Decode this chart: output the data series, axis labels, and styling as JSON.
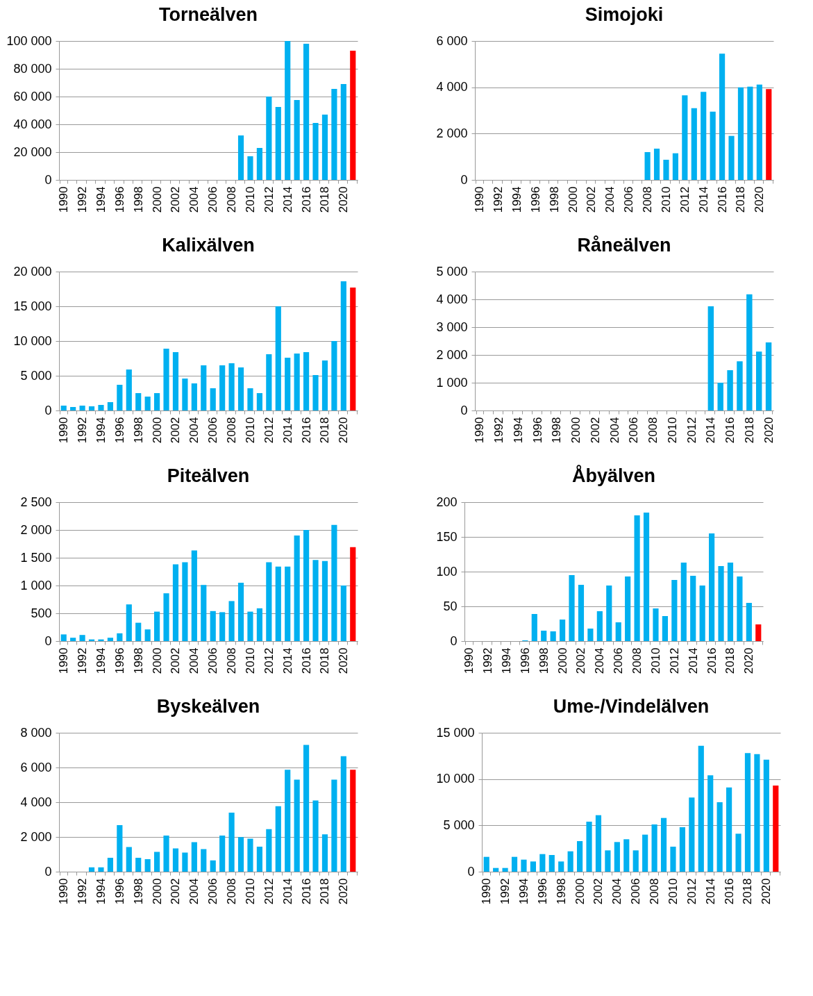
{
  "chart_data": [
    {
      "type": "bar",
      "title": "Torneälven",
      "categories": [
        "1990",
        null,
        "1992",
        null,
        "1994",
        null,
        "1996",
        null,
        "1998",
        null,
        "2000",
        null,
        "2002",
        null,
        "2004",
        null,
        "2006",
        null,
        "2008",
        null,
        "2010",
        null,
        "2012",
        null,
        "2014",
        null,
        "2016",
        null,
        "2018",
        null,
        "2020",
        null
      ],
      "values": [
        null,
        null,
        null,
        null,
        null,
        null,
        null,
        null,
        null,
        null,
        null,
        null,
        null,
        null,
        null,
        null,
        null,
        null,
        null,
        32000,
        17000,
        23000,
        60000,
        52500,
        100000,
        57500,
        98000,
        41000,
        47000,
        65500,
        69000,
        93000
      ],
      "colors": [
        null,
        null,
        null,
        null,
        null,
        null,
        null,
        null,
        null,
        null,
        null,
        null,
        null,
        null,
        null,
        null,
        null,
        null,
        null,
        "#00b0f0",
        "#00b0f0",
        "#00b0f0",
        "#00b0f0",
        "#00b0f0",
        "#00b0f0",
        "#00b0f0",
        "#00b0f0",
        "#00b0f0",
        "#00b0f0",
        "#00b0f0",
        "#00b0f0",
        "#ff0000"
      ],
      "ylim": [
        0,
        100000
      ],
      "yticks": [
        0,
        {
          "value": 20000,
          "label": "20 000"
        },
        {
          "value": 40000,
          "label": "40 000"
        },
        {
          "value": 60000,
          "label": "60 000"
        },
        {
          "value": 80000,
          "label": "80 000"
        },
        {
          "value": 100000,
          "label": "100 000"
        }
      ],
      "grid": "y"
    },
    {
      "type": "bar",
      "title": "Simojoki",
      "categories": [
        "1990",
        null,
        "1992",
        null,
        "1994",
        null,
        "1996",
        null,
        "1998",
        null,
        "2000",
        null,
        "2002",
        null,
        "2004",
        null,
        "2006",
        null,
        "2008",
        null,
        "2010",
        null,
        "2012",
        null,
        "2014",
        null,
        "2016",
        null,
        "2018",
        null,
        "2020",
        null
      ],
      "values": [
        null,
        null,
        null,
        null,
        null,
        null,
        null,
        null,
        null,
        null,
        null,
        null,
        null,
        null,
        null,
        null,
        null,
        null,
        1200,
        1350,
        870,
        1150,
        3650,
        3100,
        3800,
        2950,
        5450,
        1900,
        4000,
        4030,
        4120,
        3920
      ],
      "colors": [
        null,
        null,
        null,
        null,
        null,
        null,
        null,
        null,
        null,
        null,
        null,
        null,
        null,
        null,
        null,
        null,
        null,
        null,
        "#00b0f0",
        "#00b0f0",
        "#00b0f0",
        "#00b0f0",
        "#00b0f0",
        "#00b0f0",
        "#00b0f0",
        "#00b0f0",
        "#00b0f0",
        "#00b0f0",
        "#00b0f0",
        "#00b0f0",
        "#00b0f0",
        "#ff0000"
      ],
      "ylim": [
        0,
        6000
      ],
      "yticks": [
        0,
        {
          "value": 2000,
          "label": "2 000"
        },
        {
          "value": 4000,
          "label": "4 000"
        },
        {
          "value": 6000,
          "label": "6 000"
        }
      ],
      "grid": "y"
    },
    {
      "type": "bar",
      "title": "Kalixälven",
      "categories": [
        "1990",
        null,
        "1992",
        null,
        "1994",
        null,
        "1996",
        null,
        "1998",
        null,
        "2000",
        null,
        "2002",
        null,
        "2004",
        null,
        "2006",
        null,
        "2008",
        null,
        "2010",
        null,
        "2012",
        null,
        "2014",
        null,
        "2016",
        null,
        "2018",
        null,
        "2020",
        null
      ],
      "values": [
        700,
        500,
        700,
        600,
        800,
        1200,
        3700,
        5900,
        2500,
        2000,
        2500,
        8900,
        8400,
        4600,
        3900,
        6500,
        3200,
        6500,
        6800,
        6200,
        3200,
        2500,
        8100,
        15000,
        7600,
        8200,
        8400,
        5100,
        7200,
        10000,
        18600,
        17700
      ],
      "colors": [
        "#00b0f0",
        "#00b0f0",
        "#00b0f0",
        "#00b0f0",
        "#00b0f0",
        "#00b0f0",
        "#00b0f0",
        "#00b0f0",
        "#00b0f0",
        "#00b0f0",
        "#00b0f0",
        "#00b0f0",
        "#00b0f0",
        "#00b0f0",
        "#00b0f0",
        "#00b0f0",
        "#00b0f0",
        "#00b0f0",
        "#00b0f0",
        "#00b0f0",
        "#00b0f0",
        "#00b0f0",
        "#00b0f0",
        "#00b0f0",
        "#00b0f0",
        "#00b0f0",
        "#00b0f0",
        "#00b0f0",
        "#00b0f0",
        "#00b0f0",
        "#00b0f0",
        "#ff0000"
      ],
      "ylim": [
        0,
        20000
      ],
      "yticks": [
        0,
        {
          "value": 5000,
          "label": "5 000"
        },
        {
          "value": 10000,
          "label": "10 000"
        },
        {
          "value": 15000,
          "label": "15 000"
        },
        {
          "value": 20000,
          "label": "20 000"
        }
      ],
      "grid": "y"
    },
    {
      "type": "bar",
      "title": "Råneälven",
      "categories": [
        "1990",
        null,
        "1992",
        null,
        "1994",
        null,
        "1996",
        null,
        "1998",
        null,
        "2000",
        null,
        "2002",
        null,
        "2004",
        null,
        "2006",
        null,
        "2008",
        null,
        "2010",
        null,
        "2012",
        null,
        "2014",
        null,
        "2016",
        null,
        "2018",
        null,
        "2020"
      ],
      "values": [
        null,
        null,
        null,
        null,
        null,
        null,
        null,
        null,
        null,
        null,
        null,
        null,
        null,
        null,
        null,
        null,
        null,
        null,
        null,
        null,
        null,
        null,
        null,
        null,
        3750,
        1000,
        1450,
        1770,
        4180,
        2120,
        2450
      ],
      "colors": [
        null,
        null,
        null,
        null,
        null,
        null,
        null,
        null,
        null,
        null,
        null,
        null,
        null,
        null,
        null,
        null,
        null,
        null,
        null,
        null,
        null,
        null,
        null,
        null,
        "#00b0f0",
        "#00b0f0",
        "#00b0f0",
        "#00b0f0",
        "#00b0f0",
        "#00b0f0",
        "#00b0f0"
      ],
      "ylim": [
        0,
        5000
      ],
      "yticks": [
        0,
        {
          "value": 1000,
          "label": "1 000"
        },
        {
          "value": 2000,
          "label": "2 000"
        },
        {
          "value": 3000,
          "label": "3 000"
        },
        {
          "value": 4000,
          "label": "4 000"
        },
        {
          "value": 5000,
          "label": "5 000"
        }
      ],
      "grid": "y"
    },
    {
      "type": "bar",
      "title": "Piteälven",
      "categories": [
        "1990",
        null,
        "1992",
        null,
        "1994",
        null,
        "1996",
        null,
        "1998",
        null,
        "2000",
        null,
        "2002",
        null,
        "2004",
        null,
        "2006",
        null,
        "2008",
        null,
        "2010",
        null,
        "2012",
        null,
        "2014",
        null,
        "2016",
        null,
        "2018",
        null,
        "2020",
        null
      ],
      "values": [
        120,
        60,
        110,
        30,
        30,
        60,
        140,
        660,
        330,
        210,
        530,
        860,
        1380,
        1420,
        1630,
        1010,
        540,
        520,
        720,
        1050,
        530,
        590,
        1420,
        1340,
        1340,
        1900,
        2000,
        1460,
        1440,
        2090,
        1000,
        1690
      ],
      "colors": [
        "#00b0f0",
        "#00b0f0",
        "#00b0f0",
        "#00b0f0",
        "#00b0f0",
        "#00b0f0",
        "#00b0f0",
        "#00b0f0",
        "#00b0f0",
        "#00b0f0",
        "#00b0f0",
        "#00b0f0",
        "#00b0f0",
        "#00b0f0",
        "#00b0f0",
        "#00b0f0",
        "#00b0f0",
        "#00b0f0",
        "#00b0f0",
        "#00b0f0",
        "#00b0f0",
        "#00b0f0",
        "#00b0f0",
        "#00b0f0",
        "#00b0f0",
        "#00b0f0",
        "#00b0f0",
        "#00b0f0",
        "#00b0f0",
        "#00b0f0",
        "#00b0f0",
        "#ff0000"
      ],
      "ylim": [
        0,
        2500
      ],
      "yticks": [
        0,
        500,
        {
          "value": 1000,
          "label": "1 000"
        },
        {
          "value": 1500,
          "label": "1 500"
        },
        {
          "value": 2000,
          "label": "2 000"
        },
        {
          "value": 2500,
          "label": "2 500"
        }
      ],
      "grid": "y"
    },
    {
      "type": "bar",
      "title": "Åbyälven",
      "categories": [
        "1990",
        null,
        "1992",
        null,
        "1994",
        null,
        "1996",
        null,
        "1998",
        null,
        "2000",
        null,
        "2002",
        null,
        "2004",
        null,
        "2006",
        null,
        "2008",
        null,
        "2010",
        null,
        "2012",
        null,
        "2014",
        null,
        "2016",
        null,
        "2018",
        null,
        "2020",
        null
      ],
      "values": [
        null,
        null,
        null,
        null,
        null,
        null,
        1,
        39,
        15,
        14,
        31,
        95,
        81,
        18,
        43,
        80,
        27,
        93,
        181,
        185,
        47,
        36,
        88,
        113,
        94,
        80,
        155,
        108,
        113,
        93,
        55,
        24
      ],
      "colors": [
        null,
        null,
        null,
        null,
        null,
        null,
        "#00b0f0",
        "#00b0f0",
        "#00b0f0",
        "#00b0f0",
        "#00b0f0",
        "#00b0f0",
        "#00b0f0",
        "#00b0f0",
        "#00b0f0",
        "#00b0f0",
        "#00b0f0",
        "#00b0f0",
        "#00b0f0",
        "#00b0f0",
        "#00b0f0",
        "#00b0f0",
        "#00b0f0",
        "#00b0f0",
        "#00b0f0",
        "#00b0f0",
        "#00b0f0",
        "#00b0f0",
        "#00b0f0",
        "#00b0f0",
        "#00b0f0",
        "#ff0000"
      ],
      "ylim": [
        0,
        200
      ],
      "yticks": [
        0,
        50,
        100,
        150,
        200
      ],
      "grid": "y"
    },
    {
      "type": "bar",
      "title": "Byskeälven",
      "categories": [
        "1990",
        null,
        "1992",
        null,
        "1994",
        null,
        "1996",
        null,
        "1998",
        null,
        "2000",
        null,
        "2002",
        null,
        "2004",
        null,
        "2006",
        null,
        "2008",
        null,
        "2010",
        null,
        "2012",
        null,
        "2014",
        null,
        "2016",
        null,
        "2018",
        null,
        "2020",
        null
      ],
      "values": [
        null,
        null,
        null,
        250,
        250,
        800,
        2680,
        1420,
        800,
        720,
        1140,
        2080,
        1340,
        1100,
        1700,
        1300,
        650,
        2080,
        3400,
        1990,
        1900,
        1440,
        2450,
        3770,
        5870,
        5300,
        7300,
        4100,
        2150,
        5300,
        6650,
        5870
      ],
      "colors": [
        null,
        null,
        null,
        "#00b0f0",
        "#00b0f0",
        "#00b0f0",
        "#00b0f0",
        "#00b0f0",
        "#00b0f0",
        "#00b0f0",
        "#00b0f0",
        "#00b0f0",
        "#00b0f0",
        "#00b0f0",
        "#00b0f0",
        "#00b0f0",
        "#00b0f0",
        "#00b0f0",
        "#00b0f0",
        "#00b0f0",
        "#00b0f0",
        "#00b0f0",
        "#00b0f0",
        "#00b0f0",
        "#00b0f0",
        "#00b0f0",
        "#00b0f0",
        "#00b0f0",
        "#00b0f0",
        "#00b0f0",
        "#00b0f0",
        "#ff0000"
      ],
      "ylim": [
        0,
        8000
      ],
      "yticks": [
        0,
        {
          "value": 2000,
          "label": "2 000"
        },
        {
          "value": 4000,
          "label": "4 000"
        },
        {
          "value": 6000,
          "label": "6 000"
        },
        {
          "value": 8000,
          "label": "8 000"
        }
      ],
      "grid": "y"
    },
    {
      "type": "bar",
      "title": "Ume-/Vindelälven",
      "categories": [
        "1990",
        null,
        "1992",
        null,
        "1994",
        null,
        "1996",
        null,
        "1998",
        null,
        "2000",
        null,
        "2002",
        null,
        "2004",
        null,
        "2006",
        null,
        "2008",
        null,
        "2010",
        null,
        "2012",
        null,
        "2014",
        null,
        "2016",
        null,
        "2018",
        null,
        "2020",
        null
      ],
      "values": [
        1600,
        400,
        400,
        1600,
        1300,
        1100,
        1900,
        1800,
        1100,
        2200,
        3300,
        5400,
        6100,
        2300,
        3200,
        3500,
        2300,
        4000,
        5100,
        5800,
        2700,
        4800,
        8000,
        13600,
        10400,
        7500,
        9100,
        4100,
        12800,
        12700,
        12100,
        9300
      ],
      "colors": [
        "#00b0f0",
        "#00b0f0",
        "#00b0f0",
        "#00b0f0",
        "#00b0f0",
        "#00b0f0",
        "#00b0f0",
        "#00b0f0",
        "#00b0f0",
        "#00b0f0",
        "#00b0f0",
        "#00b0f0",
        "#00b0f0",
        "#00b0f0",
        "#00b0f0",
        "#00b0f0",
        "#00b0f0",
        "#00b0f0",
        "#00b0f0",
        "#00b0f0",
        "#00b0f0",
        "#00b0f0",
        "#00b0f0",
        "#00b0f0",
        "#00b0f0",
        "#00b0f0",
        "#00b0f0",
        "#00b0f0",
        "#00b0f0",
        "#00b0f0",
        "#00b0f0",
        "#ff0000"
      ],
      "ylim": [
        0,
        15000
      ],
      "yticks": [
        0,
        {
          "value": 5000,
          "label": "5 000"
        },
        {
          "value": 10000,
          "label": "10 000"
        },
        {
          "value": 15000,
          "label": "15 000"
        }
      ],
      "grid": "y"
    }
  ]
}
